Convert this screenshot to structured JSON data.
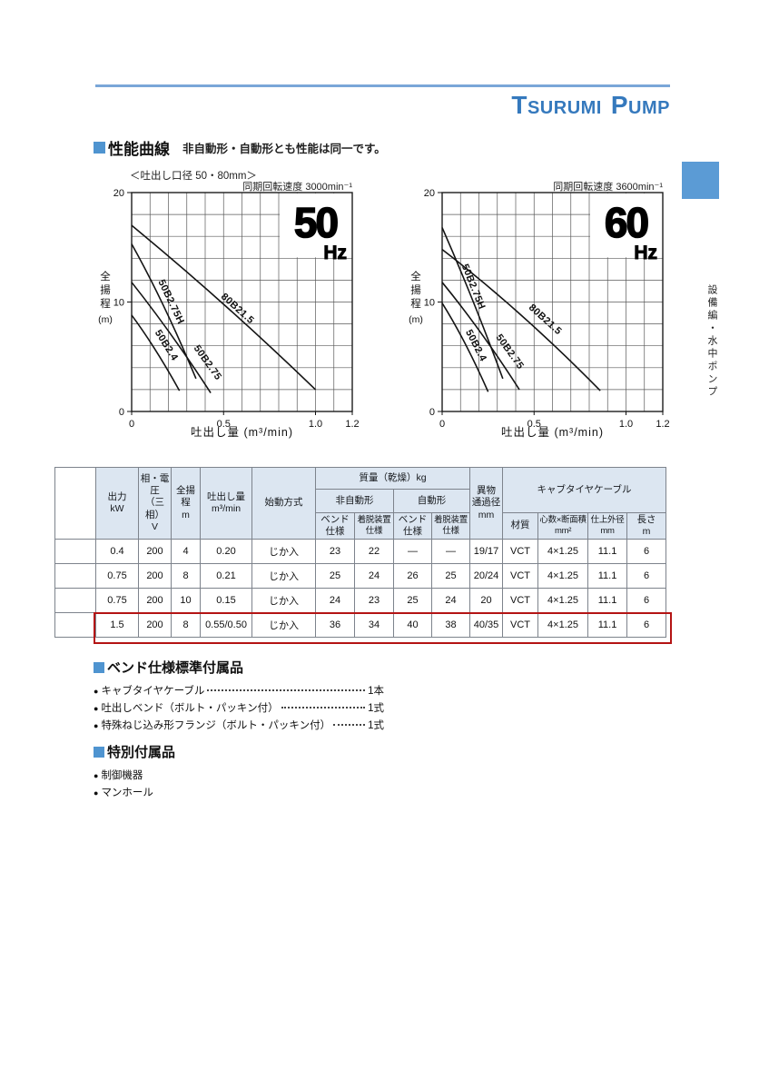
{
  "header": {
    "logo": "Tsurumi Pump"
  },
  "side_tab": {
    "label": "設備編・水中ポンプ"
  },
  "icons": {
    "bullet": "●",
    "section_marker": "■"
  },
  "colors": {
    "accent_blue": "#3579bd",
    "rule_blue": "#7aa6d8",
    "tab_blue": "#5b9bd5",
    "marker_blue": "#4f94d0",
    "table_header_bg": "#dce6f1",
    "highlight_red": "#b41414",
    "curve_black": "#141414"
  },
  "section_performance": {
    "title": "性能曲線",
    "subtitle": "非自動形・自動形とも性能は同一です。"
  },
  "chart_data": [
    {
      "type": "line",
      "id": "50hz",
      "freq_value": "50",
      "freq_unit": "Hz",
      "caption_left": "＜吐出し口径 50・80mm＞",
      "caption_right": "同期回転速度 3000min⁻¹",
      "xlabel": "吐出し量 (m³/min)",
      "ylabel": "全揚程",
      "ylabel_unit": "(m)",
      "xlim": [
        0,
        1.2
      ],
      "ylim": [
        0,
        20
      ],
      "x_gridstep": 0.1,
      "y_gridstep": 2,
      "grid": true,
      "hz_box": [
        0.8,
        14
      ],
      "x_ticks": [
        {
          "v": 0,
          "label": "0"
        },
        {
          "v": 0.5,
          "label": "0.5"
        },
        {
          "v": 1.0,
          "label": "1.0"
        },
        {
          "v": 1.2,
          "label": "1.2"
        }
      ],
      "y_ticks": [
        {
          "v": 0,
          "label": "0"
        },
        {
          "v": 10,
          "label": "10"
        },
        {
          "v": 20,
          "label": "20"
        }
      ],
      "series": [
        {
          "name": "50B2.4",
          "points": [
            [
              0,
              8.8
            ],
            [
              0.13,
              5.6
            ],
            [
              0.26,
              1.9
            ]
          ],
          "label_pos": [
            0.175,
            5.9
          ]
        },
        {
          "name": "50B2.75H",
          "points": [
            [
              0,
              15.3
            ],
            [
              0.175,
              9.6
            ],
            [
              0.35,
              3.0
            ]
          ],
          "label_pos": [
            0.2,
            9.9
          ]
        },
        {
          "name": "50B2.75",
          "points": [
            [
              0,
              11.8
            ],
            [
              0.215,
              7.0
            ],
            [
              0.43,
              1.7
            ]
          ],
          "label_pos": [
            0.4,
            4.3
          ]
        },
        {
          "name": "80B21.5",
          "points": [
            [
              0,
              17.0
            ],
            [
              0.5,
              9.8
            ],
            [
              1.0,
              2.0
            ]
          ],
          "label_pos": [
            0.565,
            9.2
          ]
        }
      ]
    },
    {
      "type": "line",
      "id": "60hz",
      "freq_value": "60",
      "freq_unit": "Hz",
      "caption_left": "",
      "caption_right": "同期回転速度 3600min⁻¹",
      "xlabel": "吐出し量 (m³/min)",
      "ylabel": "全揚程",
      "ylabel_unit": "(m)",
      "xlim": [
        0,
        1.2
      ],
      "ylim": [
        0,
        20
      ],
      "x_gridstep": 0.1,
      "y_gridstep": 2,
      "grid": true,
      "hz_box": [
        0.8,
        14
      ],
      "x_ticks": [
        {
          "v": 0,
          "label": "0"
        },
        {
          "v": 0.5,
          "label": "0.5"
        },
        {
          "v": 1.0,
          "label": "1.0"
        },
        {
          "v": 1.2,
          "label": "1.2"
        }
      ],
      "y_ticks": [
        {
          "v": 0,
          "label": "0"
        },
        {
          "v": 10,
          "label": "10"
        },
        {
          "v": 20,
          "label": "20"
        }
      ],
      "series": [
        {
          "name": "50B2.4",
          "points": [
            [
              0,
              9.9
            ],
            [
              0.125,
              6.2
            ],
            [
              0.25,
              1.8
            ]
          ],
          "label_pos": [
            0.17,
            5.9
          ]
        },
        {
          "name": "50B2.75H",
          "points": [
            [
              0,
              16.8
            ],
            [
              0.165,
              10.2
            ],
            [
              0.33,
              3.0
            ]
          ],
          "label_pos": [
            0.155,
            11.3
          ]
        },
        {
          "name": "50B2.75",
          "points": [
            [
              0,
              11.8
            ],
            [
              0.21,
              7.2
            ],
            [
              0.42,
              2.0
            ]
          ],
          "label_pos": [
            0.355,
            5.3
          ]
        },
        {
          "name": "80B21.5",
          "points": [
            [
              0,
              14.8
            ],
            [
              0.43,
              8.8
            ],
            [
              0.86,
              1.9
            ]
          ],
          "label_pos": [
            0.55,
            8.2
          ]
        }
      ]
    }
  ],
  "table": {
    "tiers": [
      [
        {
          "text": "",
          "rowspan": 3,
          "blank": true
        },
        {
          "text": "出力\nkW",
          "rowspan": 3
        },
        {
          "text": "相・電圧\n（三相）\nV",
          "rowspan": 3
        },
        {
          "text": "全揚程\nm",
          "rowspan": 3
        },
        {
          "text": "吐出し量\nm³/min",
          "rowspan": 3
        },
        {
          "text": "始動方式",
          "rowspan": 3
        },
        {
          "text": "質量（乾燥）kg",
          "colspan": 4
        },
        {
          "text": "異物\n通過径\nmm",
          "rowspan": 3
        },
        {
          "text": "キャブタイヤケーブル",
          "colspan": 4,
          "rowspan": 2
        }
      ],
      [
        {
          "text": "非自動形",
          "colspan": 2
        },
        {
          "text": "自動形",
          "colspan": 2
        }
      ],
      [
        {
          "text": "ベンド\n仕様"
        },
        {
          "text": "着脱装置\n仕様",
          "small": true
        },
        {
          "text": "ベンド\n仕様"
        },
        {
          "text": "着脱装置\n仕様",
          "small": true
        },
        {
          "text": "材質"
        },
        {
          "text": "心数×断面積\nmm²",
          "small": true
        },
        {
          "text": "仕上外径\nmm",
          "small": true
        },
        {
          "text": "長さ\nm"
        }
      ]
    ],
    "rows": [
      [
        "",
        "0.4",
        "200",
        "4",
        "0.20",
        "じか入",
        "23",
        "22",
        "—",
        "—",
        "19/17",
        "VCT",
        "4×1.25",
        "11.1",
        "6"
      ],
      [
        "",
        "0.75",
        "200",
        "8",
        "0.21",
        "じか入",
        "25",
        "24",
        "26",
        "25",
        "20/24",
        "VCT",
        "4×1.25",
        "11.1",
        "6"
      ],
      [
        "",
        "0.75",
        "200",
        "10",
        "0.15",
        "じか入",
        "24",
        "23",
        "25",
        "24",
        "20",
        "VCT",
        "4×1.25",
        "11.1",
        "6"
      ],
      [
        "",
        "1.5",
        "200",
        "8",
        "0.55/0.50",
        "じか入",
        "36",
        "34",
        "40",
        "38",
        "40/35",
        "VCT",
        "4×1.25",
        "11.1",
        "6"
      ]
    ],
    "highlighted_row": 3
  },
  "section_bend": {
    "title": "ベンド仕様標準付属品",
    "items": [
      {
        "label": "キャブタイヤケーブル",
        "value": "1本"
      },
      {
        "label": "吐出しベンド（ボルト・パッキン付）",
        "value": "1式"
      },
      {
        "label": "特殊ねじ込み形フランジ（ボルト・パッキン付）",
        "value": "1式"
      }
    ]
  },
  "section_special": {
    "title": "特別付属品",
    "items": [
      {
        "label": "制御機器"
      },
      {
        "label": "マンホール"
      }
    ]
  }
}
